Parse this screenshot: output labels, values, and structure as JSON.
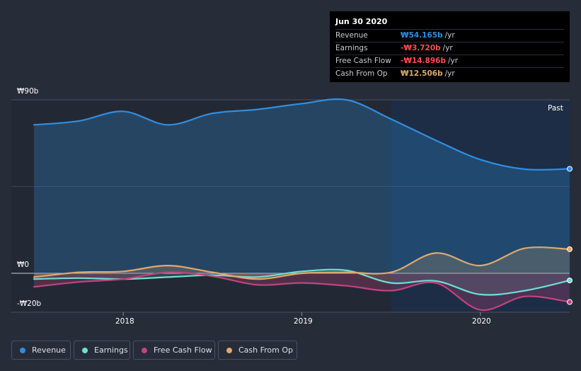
{
  "colors": {
    "revenue": "#2f8ee0",
    "earnings": "#6fded3",
    "fcf": "#c2437f",
    "cfo": "#e0a96b",
    "negative_value": "#ff4d4d"
  },
  "tooltip": {
    "date": "Jun 30 2020",
    "rows": [
      {
        "label": "Revenue",
        "value": "₩54.165b",
        "unit": "/yr"
      },
      {
        "label": "Earnings",
        "value": "-₩3.720b",
        "unit": "/yr"
      },
      {
        "label": "Free Cash Flow",
        "value": "-₩14.896b",
        "unit": "/yr"
      },
      {
        "label": "Cash From Op",
        "value": "₩12.506b",
        "unit": "/yr"
      }
    ]
  },
  "past_label": "Past",
  "legend": [
    "Revenue",
    "Earnings",
    "Free Cash Flow",
    "Cash From Op"
  ],
  "chart_data": {
    "type": "area",
    "title": "",
    "ylabel_ticks": [
      "₩90b",
      "₩0",
      "-₩20b"
    ],
    "y_tick_values": [
      90,
      0,
      -20
    ],
    "ylim": [
      -20,
      90
    ],
    "xlim": [
      2017.5,
      2020.5
    ],
    "x_ticks": [
      2018,
      2019,
      2020
    ],
    "x_tick_labels": [
      "2018",
      "2019",
      "2020"
    ],
    "forecast_boundary_x": 2019.5,
    "series": [
      {
        "name": "Revenue",
        "key": "revenue",
        "x": [
          2017.5,
          2017.75,
          2018.0,
          2018.25,
          2018.5,
          2018.75,
          2019.0,
          2019.25,
          2019.5,
          2019.75,
          2020.0,
          2020.25,
          2020.5
        ],
        "y": [
          77,
          79,
          84,
          77,
          83,
          85,
          88,
          90,
          80,
          69,
          59,
          54,
          54.2
        ]
      },
      {
        "name": "Earnings",
        "key": "earnings",
        "x": [
          2017.5,
          2017.75,
          2018.0,
          2018.25,
          2018.5,
          2018.75,
          2019.0,
          2019.25,
          2019.5,
          2019.75,
          2020.0,
          2020.25,
          2020.5
        ],
        "y": [
          -3,
          -2.5,
          -3,
          -2,
          -1,
          -2,
          1,
          1.5,
          -5,
          -4,
          -11,
          -9,
          -3.7
        ]
      },
      {
        "name": "Free Cash Flow",
        "key": "fcf",
        "x": [
          2017.5,
          2017.75,
          2018.0,
          2018.25,
          2018.5,
          2018.75,
          2019.0,
          2019.25,
          2019.5,
          2019.75,
          2020.0,
          2020.25,
          2020.5
        ],
        "y": [
          -7,
          -4.5,
          -3,
          0.5,
          -1.5,
          -6,
          -5,
          -6.5,
          -9,
          -5,
          -19,
          -12,
          -14.9
        ]
      },
      {
        "name": "Cash From Op",
        "key": "cfo",
        "x": [
          2017.5,
          2017.75,
          2018.0,
          2018.25,
          2018.5,
          2018.75,
          2019.0,
          2019.25,
          2019.5,
          2019.75,
          2020.0,
          2020.25,
          2020.5
        ],
        "y": [
          -2,
          0.5,
          1,
          4,
          0.5,
          -3,
          0,
          0.5,
          0.5,
          10.5,
          4,
          13,
          12.5
        ]
      }
    ]
  }
}
